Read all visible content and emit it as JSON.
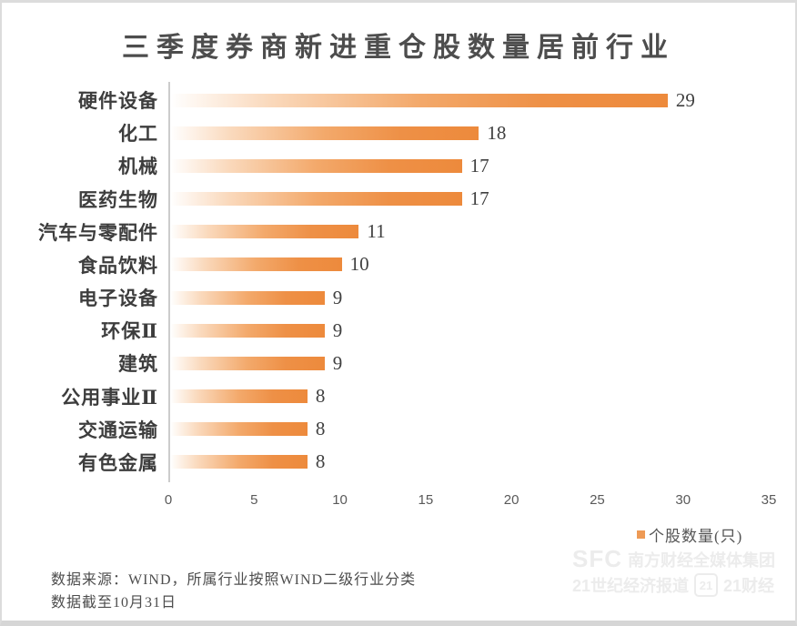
{
  "title": "三季度券商新进重仓股数量居前行业",
  "chart_data": {
    "type": "bar",
    "orientation": "horizontal",
    "title": "三季度券商新进重仓股数量居前行业",
    "categories": [
      "硬件设备",
      "化工",
      "机械",
      "医药生物",
      "汽车与零配件",
      "食品饮料",
      "电子设备",
      "环保Ⅱ",
      "建筑",
      "公用事业Ⅱ",
      "交通运输",
      "有色金属"
    ],
    "values": [
      29,
      18,
      17,
      17,
      11,
      10,
      9,
      9,
      9,
      8,
      8,
      8
    ],
    "series_name": "个股数量(只)",
    "xlim": [
      0,
      35
    ],
    "x_ticks": [
      0,
      5,
      10,
      15,
      20,
      25,
      30,
      35
    ],
    "grid": false,
    "data_labels": true,
    "bar_color": "#ED8A3C",
    "bar_gradient_start": "#FFFFFF",
    "legend_position": "bottom-right"
  },
  "legend": {
    "label": "个股数量(只)",
    "marker_color": "#EE9A55"
  },
  "footer": {
    "line1": "数据来源：WIND，所属行业按照WIND二级行业分类",
    "line2": "数据截至10月31日"
  },
  "watermark": {
    "sfc": "SFC",
    "group_name": "南方财经全媒体集团",
    "paper_name": "21世纪经济报道",
    "badge": "21",
    "app_name": "21财经"
  }
}
